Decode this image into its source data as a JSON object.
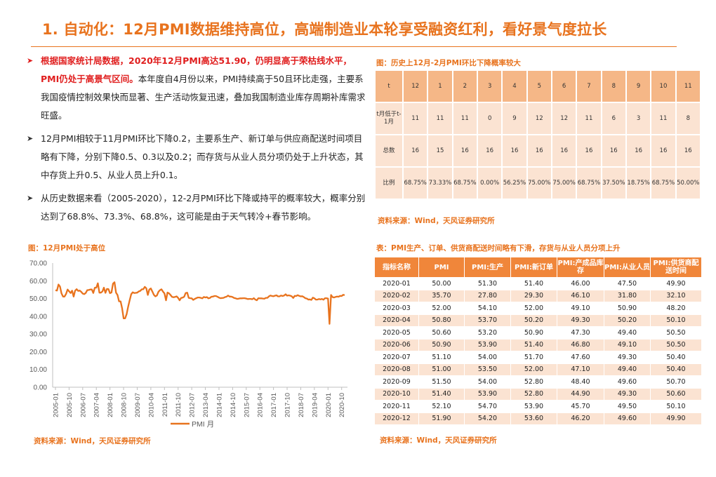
{
  "title": "1. 自动化：12月PMI数据维持高位，高端制造业本轮享受融资红利，看好景气度拉长",
  "bullets": [
    {
      "red": "根据国家统计局数据，2020年12月PMI高达51.90，仍明显高于荣枯线水平，PMI仍处于高景气区间。",
      "text": "本年度自4月份以来，PMI持续高于50且环比走强，主要系我国疫情控制效果快而显著、生产活动恢复迅速，叠加我国制造业库存周期补库需求旺盛。"
    },
    {
      "red": "",
      "text": "12月PMI相较于11月PMI环比下降0.2，主要系生产、新订单与供应商配送时间项目略有下降，分别下降0.5、0.3以及0.2；而存货与从业人员分项仍处于上升状态，其中存货上升0.5、从业人员上升0.1。"
    },
    {
      "red": "",
      "text": "从历史数据来看（2005-2020），12-2月PMI环比下降或持平的概率较大，概率分别达到了68.8%、73.3%、68.8%，这可能是由于天气转冷+春节影响。"
    }
  ],
  "table1": {
    "caption": "图：历史上12月-2月PMI环比下降概率较大",
    "source": "资料来源：Wind，天风证券研究所",
    "row_labels": [
      "t",
      "t月低于t-1月",
      "总数",
      "比例"
    ],
    "months": [
      "12",
      "1",
      "2",
      "3",
      "4",
      "5",
      "6",
      "7",
      "8",
      "9",
      "10",
      "11"
    ],
    "below": [
      "11",
      "11",
      "11",
      "0",
      "9",
      "12",
      "12",
      "11",
      "6",
      "3",
      "11",
      "8"
    ],
    "total": [
      "16",
      "15",
      "16",
      "16",
      "16",
      "16",
      "16",
      "16",
      "16",
      "16",
      "16",
      "16"
    ],
    "ratio": [
      "68.75%",
      "73.33%",
      "68.75%",
      "0.00%",
      "56.25%",
      "75.00%",
      "75.00%",
      "68.75%",
      "37.50%",
      "18.75%",
      "68.75%",
      "50.00%"
    ]
  },
  "table2": {
    "caption": "表：PMI生产、订单、供货商配送时间略有下滑，存货与从业人员分项上升",
    "source": "资料来源：Wind，天风证券研究所",
    "headers": [
      "指标名称",
      "PMI",
      "PMI:生产",
      "PMI:新订单",
      "PMI:产成品库存",
      "PMI:从业人员",
      "PMI:供货商配送时间"
    ],
    "rows": [
      [
        "2020-01",
        "50.00",
        "51.30",
        "51.40",
        "46.00",
        "47.50",
        "49.90"
      ],
      [
        "2020-02",
        "35.70",
        "27.80",
        "29.30",
        "46.10",
        "31.80",
        "32.10"
      ],
      [
        "2020-03",
        "52.00",
        "54.10",
        "52.00",
        "49.10",
        "50.90",
        "48.20"
      ],
      [
        "2020-04",
        "50.80",
        "53.70",
        "50.20",
        "49.30",
        "50.20",
        "50.10"
      ],
      [
        "2020-05",
        "50.60",
        "53.20",
        "50.90",
        "47.30",
        "49.40",
        "50.50"
      ],
      [
        "2020-06",
        "50.90",
        "53.90",
        "51.40",
        "46.80",
        "49.10",
        "50.50"
      ],
      [
        "2020-07",
        "51.10",
        "54.00",
        "51.70",
        "47.60",
        "49.30",
        "50.40"
      ],
      [
        "2020-08",
        "51.00",
        "53.50",
        "52.00",
        "47.10",
        "49.40",
        "50.40"
      ],
      [
        "2020-09",
        "51.50",
        "54.00",
        "52.80",
        "48.40",
        "49.60",
        "50.70"
      ],
      [
        "2020-10",
        "51.40",
        "53.90",
        "52.80",
        "44.90",
        "49.30",
        "50.60"
      ],
      [
        "2020-11",
        "52.10",
        "54.70",
        "53.90",
        "45.70",
        "49.50",
        "50.10"
      ],
      [
        "2020-12",
        "51.90",
        "54.20",
        "53.60",
        "46.20",
        "49.60",
        "49.90"
      ]
    ]
  },
  "chart": {
    "caption": "图：12月PMI处于高位",
    "source": "资料来源：Wind，天风证券研究所",
    "line_color": "#E8731E"
  },
  "chart_data": {
    "type": "line",
    "title": "",
    "legend": "PMI 月",
    "legend_position": "bottom",
    "ylim": [
      0,
      70
    ],
    "yticks": [
      "0.00",
      "10.00",
      "20.00",
      "30.00",
      "40.00",
      "50.00",
      "60.00",
      "70.00"
    ],
    "xticks": [
      "2005-01",
      "2005-10",
      "2006-07",
      "2007-04",
      "2008-01",
      "2008-10",
      "2009-07",
      "2010-04",
      "2011-01",
      "2011-10",
      "2012-07",
      "2013-04",
      "2014-01",
      "2014-10",
      "2015-07",
      "2016-04",
      "2017-01",
      "2017-10",
      "2018-07",
      "2019-04",
      "2020-01",
      "2020-10"
    ],
    "series": [
      {
        "name": "PMI 月",
        "start": "2005-01",
        "values": [
          54.7,
          54.5,
          57.9,
          56.7,
          52.9,
          51.1,
          51.1,
          52.6,
          55.1,
          54.1,
          53.1,
          54.4,
          51.1,
          54.4,
          55.3,
          54.3,
          54.5,
          53.8,
          52.8,
          52.5,
          53.1,
          54.7,
          54.8,
          55.1,
          55.1,
          53.1,
          56.1,
          56.1,
          58.6,
          53.3,
          53.3,
          54.0,
          56.1,
          53.2,
          55.4,
          55.3,
          53.0,
          53.4,
          58.4,
          59.2,
          53.3,
          52.0,
          48.4,
          48.4,
          44.6,
          38.8,
          38.8,
          41.2,
          45.3,
          49.0,
          52.4,
          53.5,
          53.1,
          53.2,
          53.3,
          54.0,
          54.3,
          55.2,
          55.2,
          56.6,
          55.8,
          52.0,
          55.1,
          55.7,
          53.9,
          52.1,
          51.2,
          51.7,
          53.8,
          54.7,
          55.2,
          53.9,
          52.9,
          49.0,
          53.4,
          52.9,
          52.0,
          50.9,
          50.7,
          50.9,
          51.2,
          50.4,
          49.0,
          50.3,
          50.5,
          51.0,
          53.1,
          53.3,
          50.4,
          50.2,
          50.1,
          49.2,
          49.8,
          50.2,
          50.6,
          50.6,
          50.4,
          50.1,
          50.9,
          50.6,
          50.8,
          50.1,
          50.3,
          51.0,
          51.1,
          51.4,
          51.4,
          51.0,
          50.5,
          50.2,
          50.3,
          50.4,
          50.8,
          51.0,
          51.7,
          51.1,
          51.1,
          50.8,
          50.3,
          50.1,
          49.8,
          49.9,
          50.1,
          50.1,
          50.2,
          50.2,
          50.0,
          49.7,
          49.8,
          49.8,
          49.6,
          50.2,
          49.4,
          49.0,
          50.2,
          50.1,
          50.1,
          50.0,
          49.9,
          50.4,
          50.4,
          51.2,
          51.7,
          51.4,
          51.3,
          51.6,
          51.8,
          51.2,
          51.2,
          51.7,
          51.4,
          51.7,
          52.4,
          51.6,
          51.8,
          51.6,
          51.3,
          50.3,
          51.5,
          51.4,
          51.9,
          51.5,
          51.2,
          51.3,
          50.8,
          50.2,
          50.0,
          49.4,
          49.5,
          49.2,
          50.5,
          50.1,
          49.4,
          49.4,
          49.7,
          49.5,
          49.8,
          49.3,
          50.2,
          50.2,
          50.0,
          35.7,
          52.0,
          50.8,
          50.6,
          50.9,
          51.1,
          51.0,
          51.5,
          51.4,
          52.1,
          51.9
        ]
      }
    ]
  }
}
